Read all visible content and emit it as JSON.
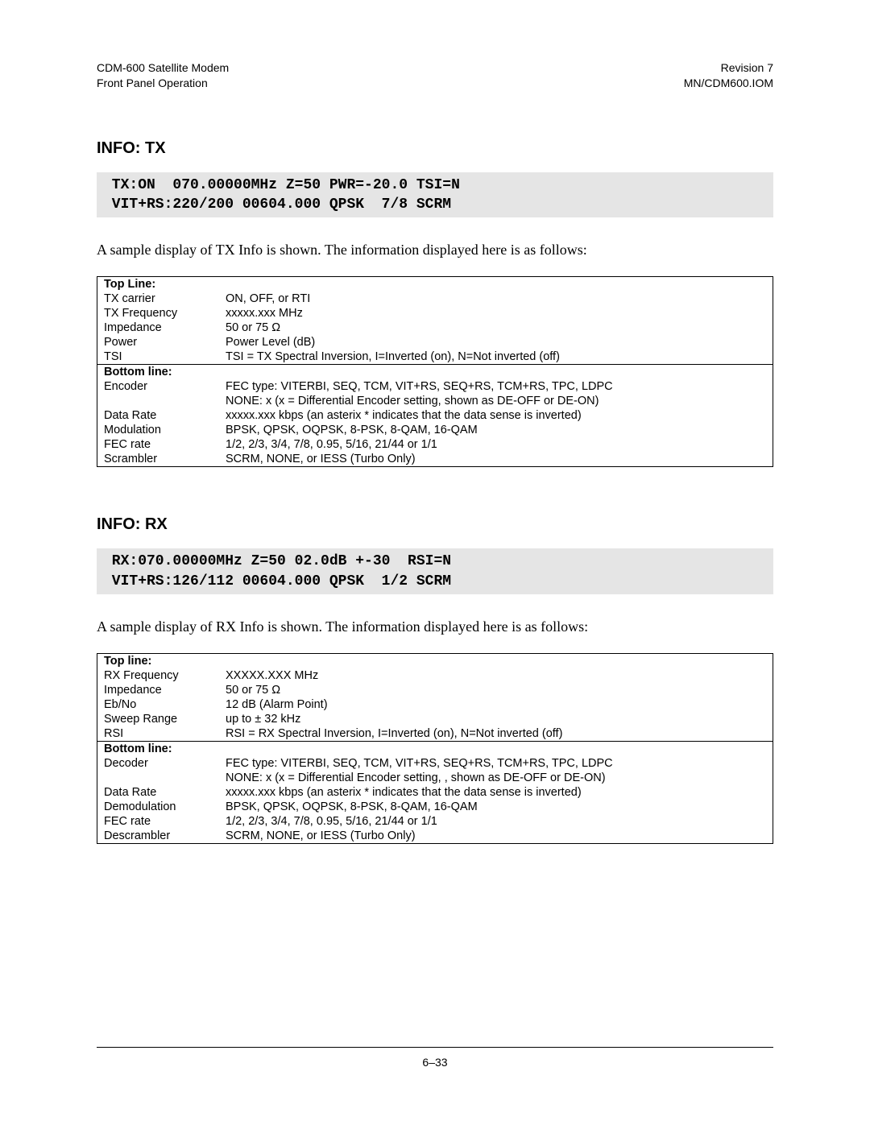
{
  "header": {
    "left1": "CDM-600 Satellite Modem",
    "left2": "Front Panel Operation",
    "right1": "Revision 7",
    "right2": "MN/CDM600.IOM"
  },
  "tx": {
    "heading": "INFO: TX",
    "lcd_line1": " TX:ON  070.00000MHz Z=50 PWR=-20.0 TSI=N",
    "lcd_line2": " VIT+RS:220/200 00604.000 QPSK  7/8 SCRM",
    "intro": "A sample display of TX Info is shown. The information displayed here is as follows:",
    "top_header": "Top Line:",
    "bottom_header": "Bottom line:",
    "top_rows": [
      {
        "label": "TX carrier",
        "value": "ON, OFF, or RTI"
      },
      {
        "label": "TX Frequency",
        "value": "xxxxx.xxx MHz"
      },
      {
        "label": "Impedance",
        "value": "50 or 75 Ω"
      },
      {
        "label": "Power",
        "value": "Power Level (dB)"
      },
      {
        "label": "TSI",
        "value": "TSI = TX Spectral Inversion, I=Inverted (on), N=Not inverted (off)"
      }
    ],
    "bottom_rows": [
      {
        "label": "Encoder",
        "value": "FEC type: VITERBI, SEQ, TCM, VIT+RS, SEQ+RS, TCM+RS, TPC, LDPC"
      },
      {
        "label": "",
        "value": "NONE: x  (x = Differential Encoder setting, shown as DE-OFF or DE-ON)"
      },
      {
        "label": "Data Rate",
        "value": "xxxxx.xxx kbps (an asterix * indicates that the data sense is inverted)"
      },
      {
        "label": "Modulation",
        "value": "BPSK, QPSK, OQPSK, 8-PSK, 8-QAM, 16-QAM"
      },
      {
        "label": "FEC rate",
        "value": "1/2, 2/3, 3/4, 7/8, 0.95, 5/16, 21/44 or 1/1"
      },
      {
        "label": "Scrambler",
        "value": "SCRM, NONE, or IESS (Turbo Only)"
      }
    ]
  },
  "rx": {
    "heading": "INFO: RX",
    "lcd_line1": " RX:070.00000MHz Z=50 02.0dB +-30  RSI=N",
    "lcd_line2": " VIT+RS:126/112 00604.000 QPSK  1/2 SCRM",
    "intro": "A sample display of RX Info is shown. The information displayed here is as follows:",
    "top_header": "Top line:",
    "bottom_header": "Bottom line:",
    "top_rows": [
      {
        "label": "RX Frequency",
        "value": "XXXXX.XXX MHz"
      },
      {
        "label": "Impedance",
        "value": "50 or 75 Ω"
      },
      {
        "label": "Eb/No",
        "value": "12 dB (Alarm Point)"
      },
      {
        "label": "Sweep Range",
        "value": "up to ± 32 kHz"
      },
      {
        "label": "RSI",
        "value": "RSI = RX Spectral Inversion, I=Inverted (on), N=Not inverted (off)"
      }
    ],
    "bottom_rows": [
      {
        "label": "Decoder",
        "value": "FEC type: VITERBI, SEQ, TCM, VIT+RS, SEQ+RS, TCM+RS, TPC, LDPC"
      },
      {
        "label": "",
        "value": "NONE: x  (x = Differential Encoder setting, , shown as DE-OFF or DE-ON)"
      },
      {
        "label": "Data Rate",
        "value": "xxxxx.xxx kbps (an asterix * indicates that the data sense is inverted)"
      },
      {
        "label": "Demodulation",
        "value": "BPSK, QPSK, OQPSK, 8-PSK, 8-QAM, 16-QAM"
      },
      {
        "label": "FEC rate",
        "value": "1/2, 2/3, 3/4, 7/8, 0.95, 5/16, 21/44 or 1/1"
      },
      {
        "label": "Descrambler",
        "value": "SCRM, NONE, or IESS (Turbo Only)"
      }
    ]
  },
  "footer": {
    "page": "6–33"
  }
}
